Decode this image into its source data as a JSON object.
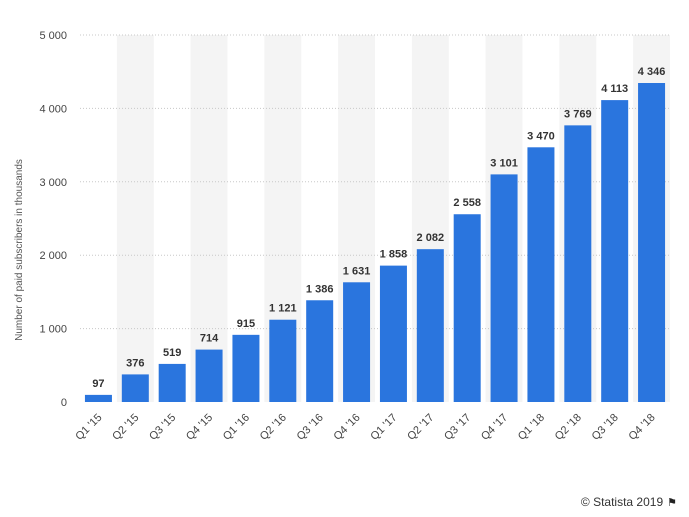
{
  "chart_data": {
    "type": "bar",
    "categories": [
      "Q1 '15",
      "Q2 '15",
      "Q3 '15",
      "Q4 '15",
      "Q1 '16",
      "Q2 '16",
      "Q3 '16",
      "Q4 '16",
      "Q1 '17",
      "Q2 '17",
      "Q3 '17",
      "Q4 '17",
      "Q1 '18",
      "Q2 '18",
      "Q3 '18",
      "Q4 '18"
    ],
    "values": [
      97,
      376,
      519,
      714,
      915,
      1121,
      1386,
      1631,
      1858,
      2082,
      2558,
      3101,
      3470,
      3769,
      4113,
      4346
    ],
    "data_labels": [
      "97",
      "376",
      "519",
      "714",
      "915",
      "1 121",
      "1 386",
      "1 631",
      "1 858",
      "2 082",
      "2 558",
      "3 101",
      "3 470",
      "3 769",
      "4 113",
      "4 346"
    ],
    "ylabel": "Number of paid subscribers in thousands",
    "xlabel": "",
    "ylim": [
      0,
      5000
    ],
    "yticks": [
      0,
      1000,
      2000,
      3000,
      4000,
      5000
    ],
    "ytick_labels": [
      "0",
      "1 000",
      "2 000",
      "3 000",
      "4 000",
      "5 000"
    ],
    "grid": true,
    "bar_color": "#2a75de"
  },
  "credit": {
    "text": "© Statista 2019",
    "icon": "flag-icon"
  }
}
